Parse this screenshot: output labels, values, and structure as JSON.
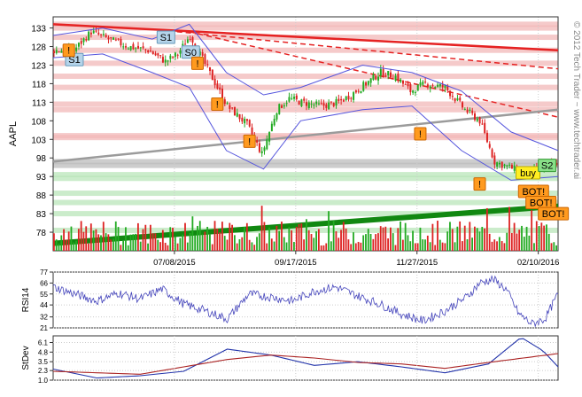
{
  "copyright": "© 2012 Tech Trader ~ www.techtrader.ai",
  "chart_data": [
    {
      "type": "line",
      "name": "price",
      "ylabel": "AAPL",
      "ylim": [
        73,
        136
      ],
      "yticks": [
        78,
        83,
        88,
        93,
        98,
        103,
        108,
        113,
        118,
        123,
        128,
        133
      ],
      "xticks": [
        "07/08/2015",
        "09/17/2015",
        "11/27/2015",
        "02/10/2016"
      ],
      "sessions": 204,
      "xtick_sessions": [
        49,
        98,
        147,
        196
      ],
      "price_path": [
        [
          0,
          127
        ],
        [
          8,
          127
        ],
        [
          15,
          132
        ],
        [
          22,
          130
        ],
        [
          30,
          128
        ],
        [
          38,
          127
        ],
        [
          45,
          124
        ],
        [
          50,
          126
        ],
        [
          55,
          131
        ],
        [
          62,
          122
        ],
        [
          70,
          112
        ],
        [
          78,
          107
        ],
        [
          84,
          99
        ],
        [
          90,
          111
        ],
        [
          95,
          114
        ],
        [
          100,
          113
        ],
        [
          108,
          112
        ],
        [
          115,
          113
        ],
        [
          120,
          115
        ],
        [
          126,
          118
        ],
        [
          132,
          121
        ],
        [
          138,
          120
        ],
        [
          144,
          116
        ],
        [
          150,
          118
        ],
        [
          158,
          117
        ],
        [
          166,
          111
        ],
        [
          172,
          108
        ],
        [
          178,
          97
        ],
        [
          186,
          95
        ],
        [
          192,
          94
        ],
        [
          200,
          96
        ],
        [
          204,
          97
        ]
      ],
      "ohlc_note": "",
      "series": [
        {
          "name": "Upper band",
          "color": "#5555dd",
          "values": [
            [
              0,
              131
            ],
            [
              20,
              133
            ],
            [
              40,
              130
            ],
            [
              55,
              134
            ],
            [
              70,
              121
            ],
            [
              85,
              115
            ],
            [
              100,
              117
            ],
            [
              125,
              123
            ],
            [
              145,
              121
            ],
            [
              165,
              116
            ],
            [
              185,
              105
            ],
            [
              204,
              100
            ]
          ]
        },
        {
          "name": "Lower band",
          "color": "#5555dd",
          "values": [
            [
              0,
              125
            ],
            [
              20,
              126
            ],
            [
              40,
              121
            ],
            [
              55,
              117
            ],
            [
              70,
              100
            ],
            [
              85,
              95
            ],
            [
              100,
              108
            ],
            [
              125,
              111
            ],
            [
              145,
              112
            ],
            [
              165,
              100
            ],
            [
              185,
              92
            ],
            [
              204,
              93
            ]
          ]
        }
      ],
      "resistance_levels": [
        134,
        133,
        130.5,
        127,
        123.5,
        120,
        117,
        112.5,
        111,
        104,
        103.5
      ],
      "support_levels": [
        97,
        96,
        93.5,
        92.5,
        88.5,
        86,
        83,
        78.5
      ],
      "trendlines": [
        {
          "label": "",
          "color": "#e52222",
          "style": "solid",
          "from": [
            0,
            134
          ],
          "to": [
            204,
            127
          ]
        },
        {
          "label": "",
          "color": "#e52222",
          "style": "dashed",
          "from": [
            50,
            132
          ],
          "to": [
            204,
            122
          ]
        },
        {
          "label": "",
          "color": "#e52222",
          "style": "dashed",
          "from": [
            55,
            132
          ],
          "to": [
            204,
            109
          ]
        },
        {
          "label": "",
          "color": "#9b9b9b",
          "style": "solid",
          "from": [
            0,
            97
          ],
          "to": [
            204,
            111
          ]
        },
        {
          "label": "",
          "color": "#118811",
          "style": "solid",
          "from": [
            0,
            75
          ],
          "to": [
            204,
            85
          ]
        }
      ],
      "annotations": [
        {
          "text": "S1",
          "session": 5,
          "price": 124.5,
          "style": "blue"
        },
        {
          "text": "S1",
          "session": 42,
          "price": 130.5,
          "style": "blue"
        },
        {
          "text": "S0",
          "session": 52,
          "price": 126.5,
          "style": "blue"
        },
        {
          "text": "!",
          "session": 4,
          "price": 127,
          "style": "orange"
        },
        {
          "text": "!",
          "session": 56,
          "price": 123.5,
          "style": "orange"
        },
        {
          "text": "!",
          "session": 64,
          "price": 112.5,
          "style": "orange"
        },
        {
          "text": "!",
          "session": 77,
          "price": 102.5,
          "style": "orange"
        },
        {
          "text": "!",
          "session": 146,
          "price": 104.5,
          "style": "orange"
        },
        {
          "text": "!",
          "session": 170,
          "price": 91,
          "style": "orange"
        },
        {
          "text": "buy",
          "session": 187,
          "price": 94,
          "style": "yellow"
        },
        {
          "text": "S2",
          "session": 196,
          "price": 96,
          "style": "green"
        },
        {
          "text": "BOT!",
          "session": 188,
          "price": 89,
          "style": "orange"
        },
        {
          "text": "BOT!",
          "session": 191,
          "price": 86,
          "style": "orange"
        },
        {
          "text": "BOT!",
          "session": 196,
          "price": 83,
          "style": "orange"
        }
      ]
    },
    {
      "type": "line",
      "name": "rsi",
      "ylabel": "RSI14",
      "ylim": [
        21,
        77
      ],
      "yticks": [
        21,
        32,
        44,
        55,
        66,
        77
      ],
      "values": [
        [
          0,
          62
        ],
        [
          10,
          55
        ],
        [
          20,
          48
        ],
        [
          30,
          56
        ],
        [
          40,
          50
        ],
        [
          50,
          60
        ],
        [
          60,
          45
        ],
        [
          70,
          38
        ],
        [
          80,
          30
        ],
        [
          90,
          55
        ],
        [
          100,
          52
        ],
        [
          110,
          48
        ],
        [
          120,
          58
        ],
        [
          130,
          62
        ],
        [
          140,
          53
        ],
        [
          150,
          45
        ],
        [
          160,
          35
        ],
        [
          170,
          28
        ],
        [
          180,
          38
        ],
        [
          190,
          52
        ],
        [
          196,
          66
        ],
        [
          202,
          70
        ],
        [
          208,
          60
        ],
        [
          214,
          35
        ],
        [
          220,
          25
        ],
        [
          226,
          30
        ],
        [
          232,
          55
        ]
      ]
    },
    {
      "type": "line",
      "name": "stdev",
      "ylabel": "StDev",
      "ylim": [
        1.0,
        7.0
      ],
      "yticks": [
        1.0,
        2.3,
        3.5,
        4.8,
        6.1
      ],
      "series": [
        {
          "name": "",
          "color": "#2233aa",
          "values": [
            [
              0,
              2.5
            ],
            [
              20,
              1.3
            ],
            [
              40,
              1.6
            ],
            [
              60,
              2.2
            ],
            [
              80,
              5.2
            ],
            [
              100,
              4.4
            ],
            [
              120,
              3.0
            ],
            [
              140,
              3.5
            ],
            [
              160,
              2.8
            ],
            [
              180,
              2.0
            ],
            [
              200,
              3.2
            ],
            [
              215,
              6.8
            ],
            [
              225,
              5.0
            ],
            [
              232,
              2.8
            ]
          ]
        },
        {
          "name": "",
          "color": "#aa2222",
          "values": [
            [
              0,
              2.2
            ],
            [
              40,
              1.8
            ],
            [
              80,
              3.8
            ],
            [
              100,
              4.4
            ],
            [
              120,
              4.0
            ],
            [
              140,
              3.4
            ],
            [
              160,
              3.2
            ],
            [
              180,
              2.6
            ],
            [
              200,
              3.4
            ],
            [
              232,
              4.6
            ]
          ]
        }
      ]
    }
  ]
}
